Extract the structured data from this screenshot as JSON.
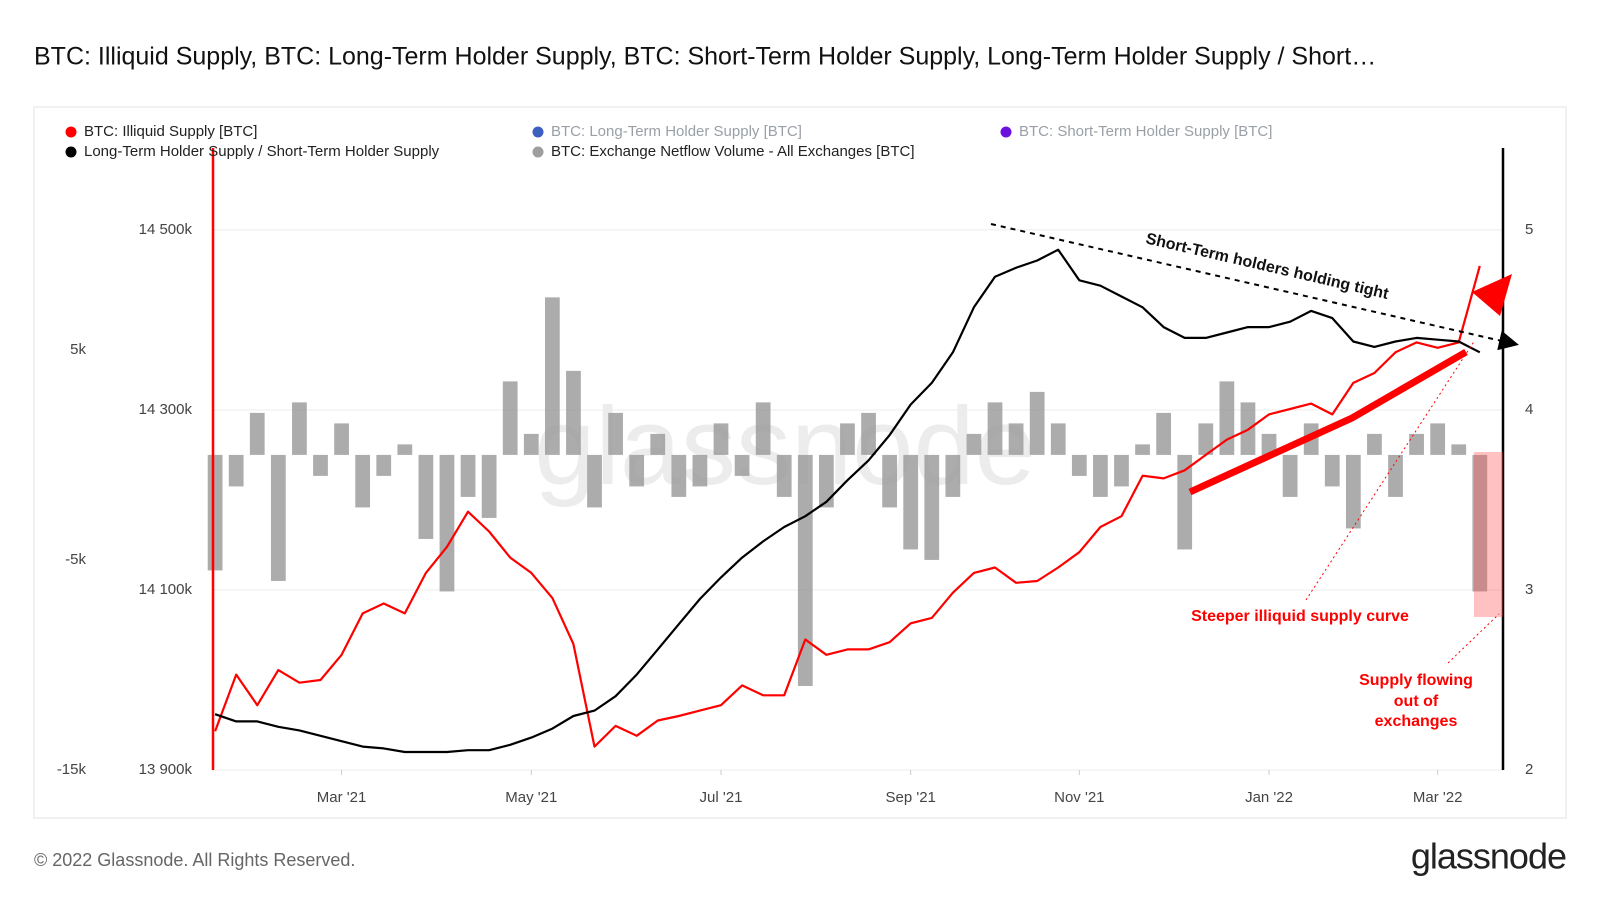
{
  "chart_data": {
    "type": "combo",
    "title": "BTC: Illiquid Supply, BTC: Long-Term Holder Supply, BTC: Short-Term Holder Supply, Long-Term Holder Supply / Short…",
    "footer": "© 2022 Glassnode. All Rights Reserved.",
    "logo": "glassnode",
    "watermark": "glassnode",
    "categories": [
      null,
      null,
      null,
      null,
      null,
      null,
      "Mar '21",
      null,
      null,
      null,
      null,
      null,
      null,
      null,
      null,
      "May '21",
      null,
      null,
      null,
      null,
      null,
      null,
      null,
      null,
      "Jul '21",
      null,
      null,
      null,
      null,
      null,
      null,
      null,
      null,
      "Sep '21",
      null,
      null,
      null,
      null,
      null,
      null,
      null,
      "Nov '21",
      null,
      null,
      null,
      null,
      null,
      null,
      null,
      null,
      "Jan '22",
      null,
      null,
      null,
      null,
      null,
      null,
      null,
      "Mar '22",
      null,
      null
    ],
    "ylim": [
      13900,
      14591
    ],
    "yticks": [
      {
        "value": 13900,
        "label": "13 900k"
      },
      {
        "value": 14100,
        "label": "14 100k"
      },
      {
        "value": 14300,
        "label": "14 300k"
      },
      {
        "value": 14500,
        "label": "14 500k"
      }
    ],
    "y2lim": [
      2,
      5.455
    ],
    "y2ticks": [
      2,
      3,
      4,
      5
    ],
    "y3lim": [
      -15000,
      14610
    ],
    "y3ticks": [
      {
        "value": 5000,
        "label": "5k"
      },
      {
        "value": -5000,
        "label": "-5k"
      },
      {
        "value": -15000,
        "label": "-15k"
      }
    ],
    "grid": true,
    "series": [
      {
        "name": "BTC: Illiquid Supply [BTC]",
        "color": "#ff0000",
        "type": "line",
        "axis": "y",
        "values": [
          13943,
          14006,
          13972,
          14011,
          13997,
          14000,
          14028,
          14074,
          14085,
          14074,
          14119,
          14148,
          14187,
          14165,
          14136,
          14119,
          14091,
          14040,
          13926,
          13949,
          13938,
          13955,
          13960,
          13966,
          13972,
          13994,
          13983,
          13983,
          14045,
          14028,
          14034,
          14034,
          14042,
          14063,
          14069,
          14097,
          14119,
          14125,
          14108,
          14110,
          14125,
          14142,
          14170,
          14182,
          14227,
          14224,
          14233,
          14250,
          14267,
          14278,
          14295,
          14301,
          14307,
          14295,
          14330,
          14341,
          14364,
          14375,
          14369,
          14375,
          14460
        ]
      },
      {
        "name": "BTC: Long-Term Holder Supply [BTC]",
        "color": "#3c5fc0",
        "visible": false
      },
      {
        "name": "BTC: Short-Term Holder Supply [BTC]",
        "color": "#6b12e0",
        "visible": false
      },
      {
        "name": "Long-Term Holder Supply / Short-Term Holder Supply",
        "color": "#000000",
        "type": "line",
        "axis": "y2",
        "values": [
          2.31,
          2.27,
          2.27,
          2.24,
          2.22,
          2.19,
          2.16,
          2.13,
          2.12,
          2.1,
          2.1,
          2.1,
          2.11,
          2.11,
          2.14,
          2.18,
          2.23,
          2.3,
          2.33,
          2.41,
          2.53,
          2.67,
          2.81,
          2.95,
          3.07,
          3.18,
          3.27,
          3.35,
          3.41,
          3.49,
          3.61,
          3.72,
          3.86,
          4.03,
          4.15,
          4.32,
          4.57,
          4.74,
          4.79,
          4.83,
          4.89,
          4.72,
          4.69,
          4.63,
          4.57,
          4.46,
          4.4,
          4.4,
          4.43,
          4.46,
          4.46,
          4.49,
          4.55,
          4.51,
          4.38,
          4.35,
          4.38,
          4.4,
          4.39,
          4.38,
          4.32
        ]
      },
      {
        "name": "BTC: Exchange Netflow Volume - All Exchanges [BTC]",
        "color": "#9e9e9e",
        "type": "bar",
        "axis": "y3",
        "values": [
          -5500,
          -1500,
          2000,
          -6000,
          2500,
          -1000,
          1500,
          -2500,
          -1000,
          500,
          -4000,
          -6500,
          -2000,
          -3000,
          3500,
          1000,
          7500,
          4000,
          -2500,
          2000,
          -1500,
          1000,
          -2000,
          -1500,
          1500,
          -1000,
          2500,
          -2000,
          -11000,
          -2500,
          1500,
          2000,
          -2500,
          -4500,
          -5000,
          -2000,
          1000,
          2500,
          1500,
          3000,
          1500,
          -1000,
          -2000,
          -1500,
          500,
          2000,
          -4500,
          1500,
          3500,
          2500,
          1000,
          -2000,
          1500,
          -1500,
          -3500,
          1000,
          -2000,
          1000,
          1500,
          500,
          -6500
        ]
      }
    ],
    "annotations": {
      "short_term": "Short-Term holders holding tight",
      "steeper": "Steeper illiquid supply curve",
      "outflow": [
        "Supply flowing",
        "out of",
        "exchanges"
      ]
    }
  }
}
